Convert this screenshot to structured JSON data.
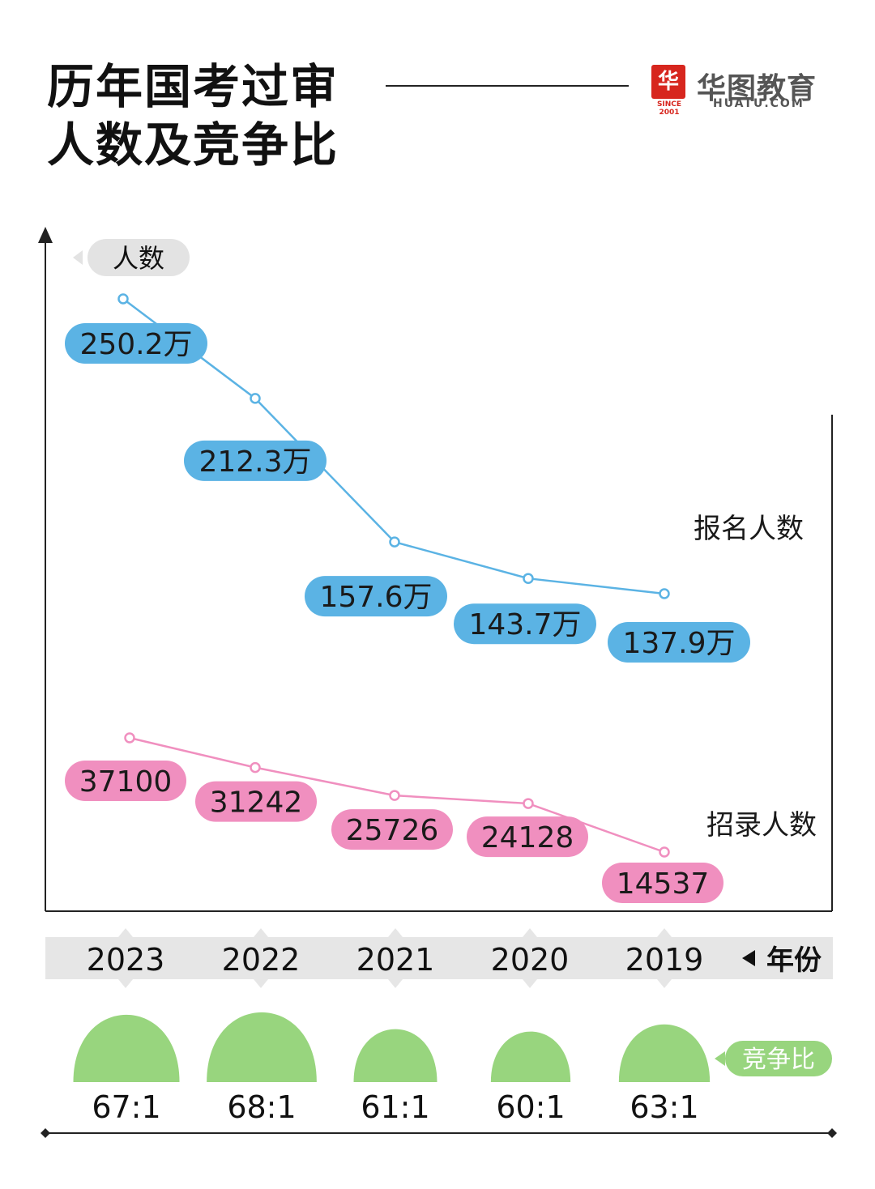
{
  "header": {
    "title_line1": "历年国考过审",
    "title_line2": "人数及竞争比",
    "brand_mark": "华",
    "brand_name": "华图教育",
    "brand_url": "HUATU.COM",
    "brand_since": "SINCE 2001"
  },
  "chart_data": {
    "type": "line",
    "title": "历年国考过审人数及竞争比",
    "y_axis_tag": "人数",
    "x_axis_tag": "年份",
    "categories": [
      "2023",
      "2022",
      "2021",
      "2020",
      "2019"
    ],
    "series": [
      {
        "name": "报名人数",
        "values": [
          250.2,
          212.3,
          157.6,
          143.7,
          137.9
        ],
        "labels": [
          "250.2万",
          "212.3万",
          "157.6万",
          "143.7万",
          "137.9万"
        ],
        "unit": "万",
        "color": "#5bb3e4"
      },
      {
        "name": "招录人数",
        "values": [
          37100,
          31242,
          25726,
          24128,
          14537
        ],
        "labels": [
          "37100",
          "31242",
          "25726",
          "24128",
          "14537"
        ],
        "color": "#f08fbf"
      }
    ],
    "ratio": {
      "name": "竞争比",
      "values": [
        67,
        68,
        61,
        60,
        63
      ],
      "labels": [
        "67:1",
        "68:1",
        "61:1",
        "60:1",
        "63:1"
      ],
      "color": "#98d57e"
    }
  },
  "colors": {
    "apply_line": "#5bb3e4",
    "hire_line": "#f08fbf",
    "ratio": "#98d57e",
    "year_band": "#e6e6e6",
    "tag_bg": "#e3e3e3",
    "brand": "#d7261e"
  }
}
